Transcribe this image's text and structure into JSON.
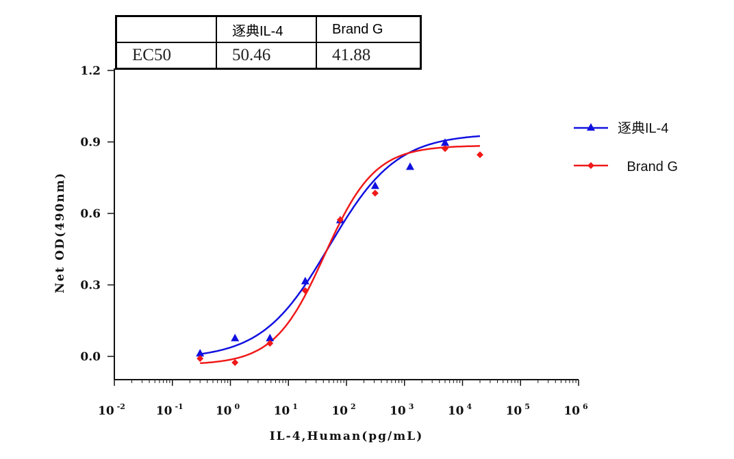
{
  "table": {
    "headers": [
      "",
      "逐典IL-4",
      "Brand G"
    ],
    "row_label": "EC50",
    "values": [
      "50.46",
      "41.88"
    ]
  },
  "chart_data": {
    "type": "scatter",
    "title": "",
    "xlabel": "IL-4,Human(pg/mL)",
    "ylabel": "Net OD(490nm)",
    "xscale": "log",
    "xlim_log10": [
      -2,
      6
    ],
    "ylim": [
      0.0,
      1.2
    ],
    "x_tick_labels": [
      {
        "base": "10",
        "exp": "-2"
      },
      {
        "base": "10",
        "exp": "-1"
      },
      {
        "base": "10",
        "exp": "0"
      },
      {
        "base": "10",
        "exp": "1"
      },
      {
        "base": "10",
        "exp": "2"
      },
      {
        "base": "10",
        "exp": "3"
      },
      {
        "base": "10",
        "exp": "4"
      },
      {
        "base": "10",
        "exp": "5"
      },
      {
        "base": "10",
        "exp": "6"
      }
    ],
    "y_ticks": [
      "0.0",
      "0.3",
      "0.6",
      "0.9",
      "1.2"
    ],
    "x": [
      0.3,
      1.2,
      4.8,
      19.5,
      78,
      312,
      1250,
      5000,
      20000
    ],
    "series": [
      {
        "name": "逐典IL-4",
        "color": "#1010e0",
        "marker": "triangle",
        "values": [
          0.014,
          0.078,
          0.078,
          0.317,
          0.573,
          0.717,
          0.797,
          0.898,
          null
        ],
        "fit": {
          "bottom": -0.01,
          "top": 0.935,
          "ec50": 50.46,
          "hill": 0.75
        }
      },
      {
        "name": " Brand G",
        "color": "#f01818",
        "marker": "diamond",
        "values": [
          -0.009,
          -0.026,
          0.055,
          0.276,
          0.573,
          0.685,
          null,
          0.872,
          0.846
        ],
        "fit": {
          "bottom": -0.035,
          "top": 0.885,
          "ec50": 41.88,
          "hill": 1.0
        }
      }
    ],
    "legend_position": "right",
    "grid": false
  }
}
